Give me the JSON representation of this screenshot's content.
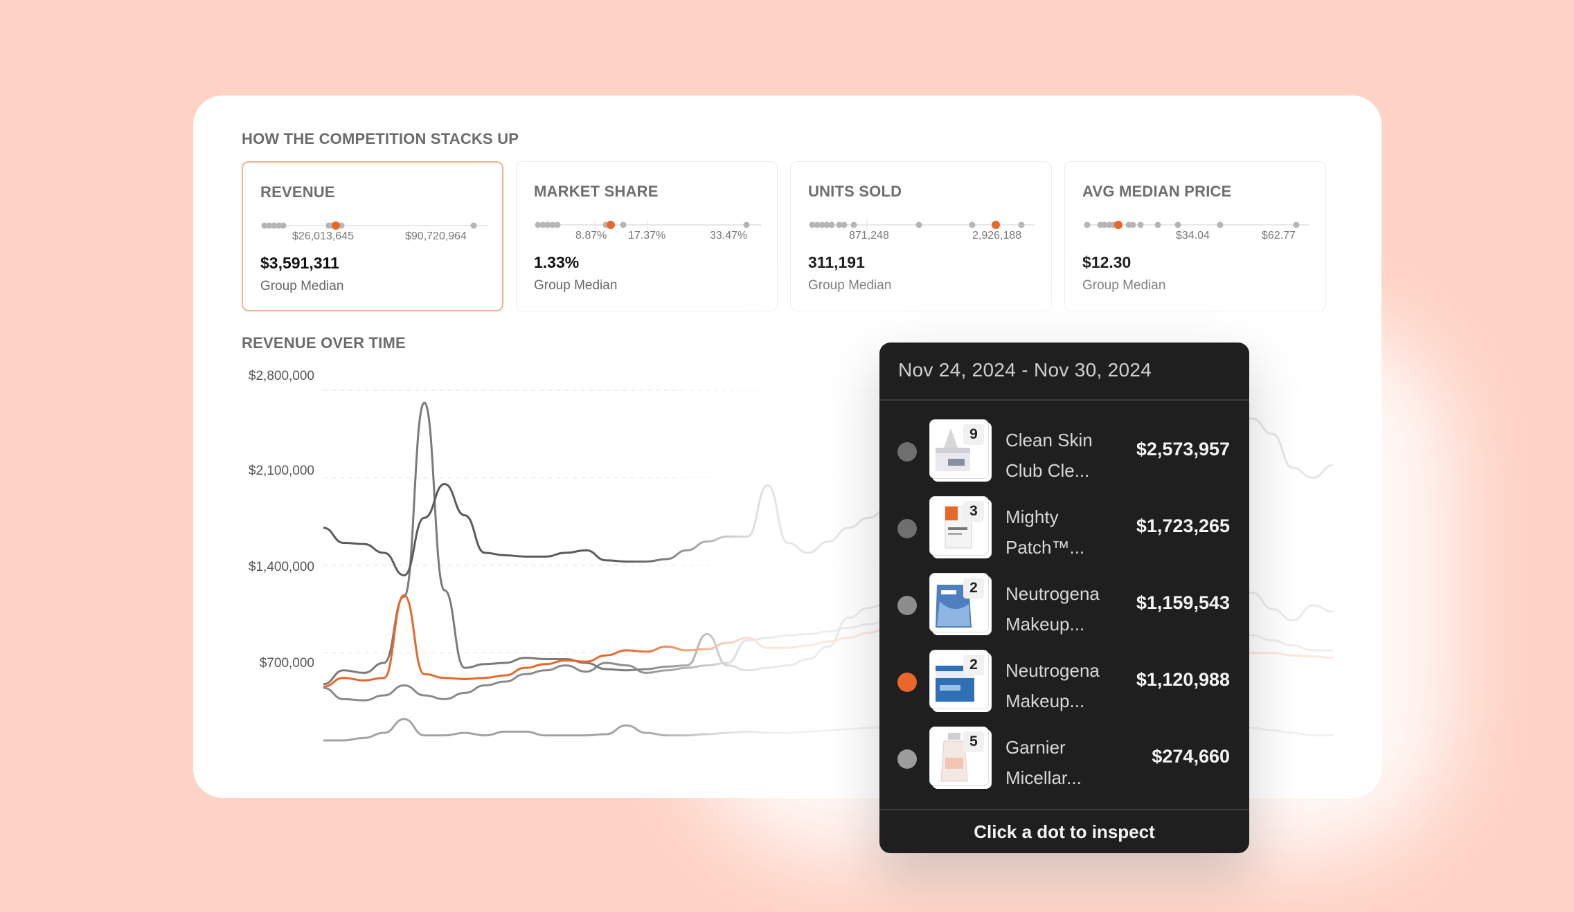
{
  "headings": {
    "competition": "HOW THE COMPETITION STACKS UP",
    "revenue_over_time": "REVENUE OVER TIME"
  },
  "metrics": [
    {
      "label": "REVENUE",
      "ticks": [
        "$26,013,645",
        "$90,720,964"
      ],
      "value": "$3,591,311",
      "sub": "Group Median",
      "active": true
    },
    {
      "label": "MARKET SHARE",
      "ticks": [
        "8.87%",
        "17.37%",
        "33.47%"
      ],
      "value": "1.33%",
      "sub": "Group Median",
      "active": false
    },
    {
      "label": "UNITS SOLD",
      "ticks": [
        "871,248",
        "2,926,188"
      ],
      "value": "311,191",
      "sub": "Group Median",
      "active": false
    },
    {
      "label": "AVG MEDIAN PRICE",
      "ticks": [
        "$34.04",
        "$62.77"
      ],
      "value": "$12.30",
      "sub": "Group Median",
      "active": false
    }
  ],
  "chart_data": {
    "type": "line",
    "title": "REVENUE OVER TIME",
    "y_ticks": [
      "$2,800,000",
      "$2,100,000",
      "$1,400,000",
      "$700,000"
    ],
    "ylim": [
      0,
      2800000
    ],
    "grid": "horizontal dashed",
    "x_count": 51,
    "series": [
      {
        "color": "#5b5b5b",
        "values": [
          1700000,
          1580000,
          1570000,
          1500000,
          1320000,
          1780000,
          2050000,
          1800000,
          1500000,
          1480000,
          1470000,
          1470000,
          1500000,
          1520000,
          1440000,
          1430000,
          1430000,
          1450000,
          1520000,
          1590000,
          1630000,
          1630000,
          2040000,
          1580000,
          1500000,
          1590000,
          1700000,
          1780000,
          1860000,
          1940000,
          2020000,
          2100000,
          2180000,
          2260000,
          2340000,
          2420000,
          2490000,
          2540000,
          2580000,
          2600000,
          2610000,
          2620000,
          2615000,
          2610000,
          2600000,
          2573957,
          2573957,
          2450000,
          2180000,
          2100000,
          2200000
        ]
      },
      {
        "color": "#7a7a7a",
        "values": [
          450000,
          560000,
          540000,
          620000,
          1150000,
          2700000,
          1200000,
          580000,
          610000,
          620000,
          660000,
          650000,
          650000,
          620000,
          570000,
          560000,
          570000,
          590000,
          600000,
          850000,
          600000,
          560000,
          580000,
          600000,
          650000,
          750000,
          980000,
          1060000,
          1100000,
          1220000,
          1340000,
          1460000,
          1580000,
          1680000,
          1723265,
          1723265,
          1723265,
          1700000,
          1680000,
          1650000,
          1620000,
          1580000,
          1540000,
          1500000,
          1400000,
          1300000,
          1180000,
          1050000,
          960000,
          1080000,
          1030000
        ]
      },
      {
        "color": "#8a8a8a",
        "values": [
          420000,
          330000,
          320000,
          360000,
          440000,
          360000,
          330000,
          380000,
          440000,
          470000,
          530000,
          560000,
          600000,
          550000,
          620000,
          600000,
          540000,
          560000,
          580000,
          600000,
          620000,
          800000,
          820000,
          840000,
          850000,
          870000,
          900000,
          930000,
          960000,
          990000,
          1020000,
          1060000,
          1100000,
          1159543,
          1159543,
          1159543,
          1150000,
          1120000,
          1080000,
          1040000,
          1000000,
          980000,
          960000,
          930000,
          900000,
          870000,
          840000,
          800000,
          760000,
          720000,
          720000
        ]
      },
      {
        "color": "#e8672a",
        "values": [
          430000,
          500000,
          480000,
          500000,
          1160000,
          530000,
          500000,
          490000,
          500000,
          520000,
          580000,
          610000,
          640000,
          630000,
          680000,
          720000,
          710000,
          750000,
          720000,
          730000,
          780000,
          820000,
          740000,
          740000,
          760000,
          790000,
          820000,
          860000,
          900000,
          950000,
          1000000,
          1060000,
          1100000,
          1120988,
          1120988,
          1120988,
          1100000,
          1060000,
          1020000,
          980000,
          940000,
          900000,
          860000,
          820000,
          780000,
          750000,
          700000,
          700000,
          680000,
          670000,
          660000
        ]
      },
      {
        "color": "#a3a3a3",
        "values": [
          0,
          0,
          20000,
          60000,
          170000,
          40000,
          40000,
          60000,
          40000,
          70000,
          70000,
          40000,
          40000,
          40000,
          50000,
          120000,
          60000,
          40000,
          40000,
          50000,
          60000,
          70000,
          60000,
          60000,
          70000,
          80000,
          90000,
          100000,
          110000,
          130000,
          150000,
          180000,
          210000,
          240000,
          260000,
          274660,
          274660,
          274660,
          260000,
          240000,
          220000,
          200000,
          180000,
          160000,
          140000,
          120000,
          100000,
          80000,
          60000,
          40000,
          40000
        ]
      }
    ]
  },
  "tooltip": {
    "date_range": "Nov 24, 2024 - Nov 30, 2024",
    "rows": [
      {
        "name_line1": "Clean Skin",
        "name_line2": "Club Cle...",
        "amount": "$2,573,957",
        "badge": "9",
        "dot_color": "#6f6f6f"
      },
      {
        "name_line1": "Mighty",
        "name_line2": "Patch™...",
        "amount": "$1,723,265",
        "badge": "3",
        "dot_color": "#6f6f6f"
      },
      {
        "name_line1": "Neutrogena",
        "name_line2": "Makeup...",
        "amount": "$1,159,543",
        "badge": "2",
        "dot_color": "#8d8d8d"
      },
      {
        "name_line1": "Neutrogena",
        "name_line2": "Makeup...",
        "amount": "$1,120,988",
        "badge": "2",
        "dot_color": "#e8672a"
      },
      {
        "name_line1": "Garnier",
        "name_line2": "Micellar...",
        "amount": "$274,660",
        "badge": "5",
        "dot_color": "#9c9c9c"
      }
    ],
    "footer": "Click a dot to inspect"
  }
}
